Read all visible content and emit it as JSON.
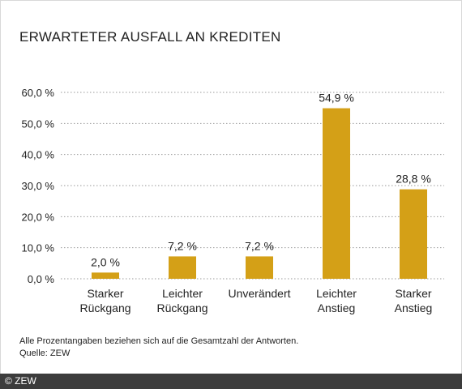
{
  "chart_data": {
    "type": "bar",
    "title": "ERWARTETER AUSFALL AN KREDITEN",
    "categories": [
      [
        "Starker",
        "Rückgang"
      ],
      [
        "Leichter",
        "Rückgang"
      ],
      [
        "Unverändert"
      ],
      [
        "Leichter",
        "Anstieg"
      ],
      [
        "Starker",
        "Anstieg"
      ]
    ],
    "values": [
      2.0,
      7.2,
      7.2,
      54.9,
      28.8
    ],
    "data_labels": [
      "2,0 %",
      "7,2 %",
      "7,2 %",
      "54,9 %",
      "28,8 %"
    ],
    "y_ticks": [
      0,
      10,
      20,
      30,
      40,
      50,
      60
    ],
    "y_tick_labels": [
      "0,0 %",
      "10,0 %",
      "20,0 %",
      "30,0 %",
      "40,0 %",
      "50,0 %",
      "60,0 %"
    ],
    "ylim": [
      0,
      60
    ],
    "xlabel": "",
    "ylabel": "",
    "grid": true,
    "bar_color": "#d4a017"
  },
  "note": {
    "line1": "Alle Prozentangaben beziehen sich auf die Gesamtzahl der Antworten.",
    "line2": "Quelle: ZEW"
  },
  "footer": {
    "copyright": "© ZEW"
  }
}
